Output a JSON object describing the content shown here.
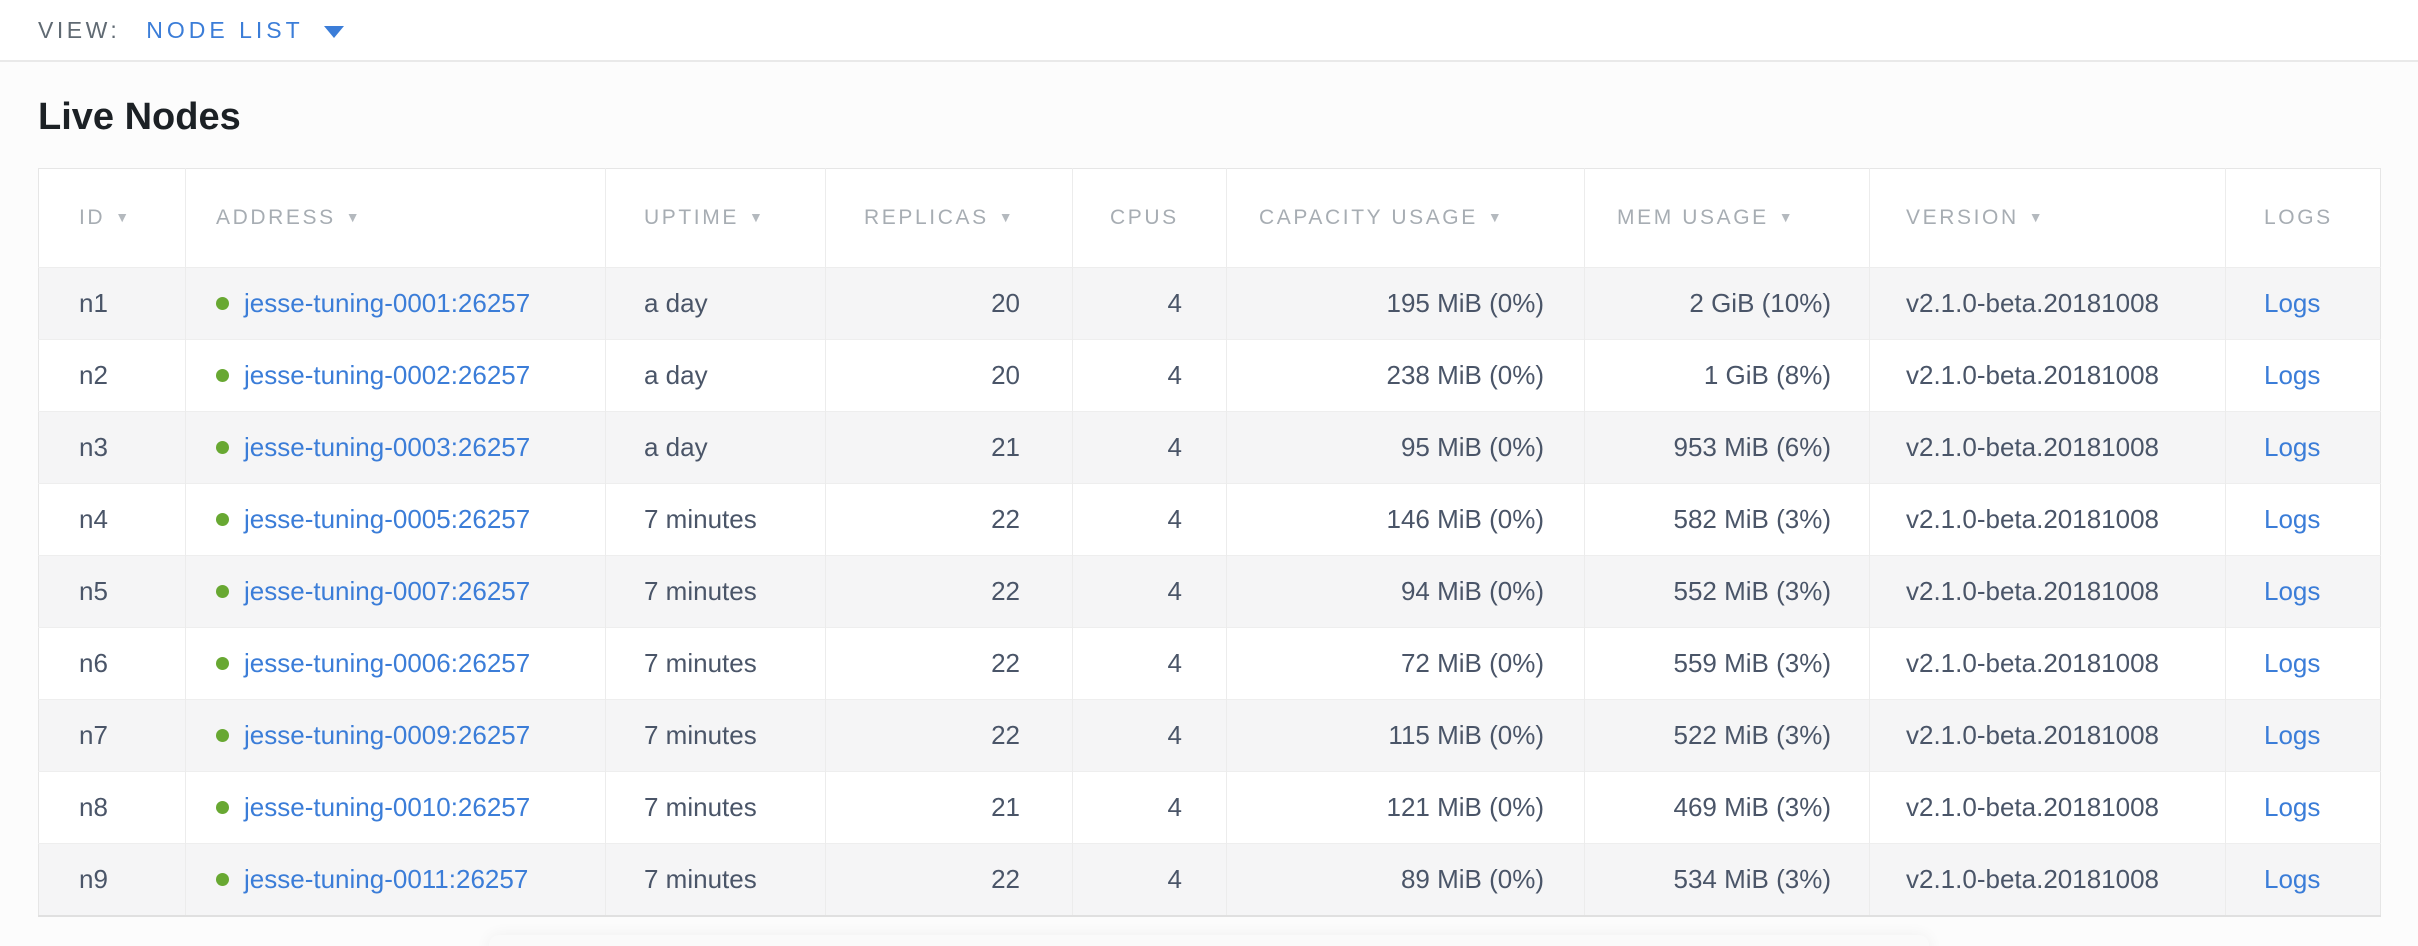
{
  "view_bar": {
    "label": "VIEW:",
    "selected": "NODE LIST"
  },
  "page": {
    "title": "Live Nodes"
  },
  "table": {
    "sort_icon_glyph": "▼",
    "columns": [
      {
        "key": "id",
        "label": "ID",
        "sortable": true
      },
      {
        "key": "address",
        "label": "ADDRESS",
        "sortable": true
      },
      {
        "key": "uptime",
        "label": "UPTIME",
        "sortable": true
      },
      {
        "key": "replicas",
        "label": "REPLICAS",
        "sortable": true
      },
      {
        "key": "cpus",
        "label": "CPUS",
        "sortable": false
      },
      {
        "key": "capacity",
        "label": "CAPACITY USAGE",
        "sortable": true
      },
      {
        "key": "mem",
        "label": "MEM USAGE",
        "sortable": true
      },
      {
        "key": "version",
        "label": "VERSION",
        "sortable": true
      },
      {
        "key": "logs",
        "label": "LOGS",
        "sortable": false
      }
    ],
    "rows": [
      {
        "id": "n1",
        "address": "jesse-tuning-0001:26257",
        "uptime": "a day",
        "replicas": "20",
        "cpus": "4",
        "capacity": "195 MiB (0%)",
        "mem": "2 GiB (10%)",
        "version": "v2.1.0-beta.20181008",
        "logs": "Logs"
      },
      {
        "id": "n2",
        "address": "jesse-tuning-0002:26257",
        "uptime": "a day",
        "replicas": "20",
        "cpus": "4",
        "capacity": "238 MiB (0%)",
        "mem": "1 GiB (8%)",
        "version": "v2.1.0-beta.20181008",
        "logs": "Logs"
      },
      {
        "id": "n3",
        "address": "jesse-tuning-0003:26257",
        "uptime": "a day",
        "replicas": "21",
        "cpus": "4",
        "capacity": "95 MiB (0%)",
        "mem": "953 MiB (6%)",
        "version": "v2.1.0-beta.20181008",
        "logs": "Logs"
      },
      {
        "id": "n4",
        "address": "jesse-tuning-0005:26257",
        "uptime": "7 minutes",
        "replicas": "22",
        "cpus": "4",
        "capacity": "146 MiB (0%)",
        "mem": "582 MiB (3%)",
        "version": "v2.1.0-beta.20181008",
        "logs": "Logs"
      },
      {
        "id": "n5",
        "address": "jesse-tuning-0007:26257",
        "uptime": "7 minutes",
        "replicas": "22",
        "cpus": "4",
        "capacity": "94 MiB (0%)",
        "mem": "552 MiB (3%)",
        "version": "v2.1.0-beta.20181008",
        "logs": "Logs"
      },
      {
        "id": "n6",
        "address": "jesse-tuning-0006:26257",
        "uptime": "7 minutes",
        "replicas": "22",
        "cpus": "4",
        "capacity": "72 MiB (0%)",
        "mem": "559 MiB (3%)",
        "version": "v2.1.0-beta.20181008",
        "logs": "Logs"
      },
      {
        "id": "n7",
        "address": "jesse-tuning-0009:26257",
        "uptime": "7 minutes",
        "replicas": "22",
        "cpus": "4",
        "capacity": "115 MiB (0%)",
        "mem": "522 MiB (3%)",
        "version": "v2.1.0-beta.20181008",
        "logs": "Logs"
      },
      {
        "id": "n8",
        "address": "jesse-tuning-0010:26257",
        "uptime": "7 minutes",
        "replicas": "21",
        "cpus": "4",
        "capacity": "121 MiB (0%)",
        "mem": "469 MiB (3%)",
        "version": "v2.1.0-beta.20181008",
        "logs": "Logs"
      },
      {
        "id": "n9",
        "address": "jesse-tuning-0011:26257",
        "uptime": "7 minutes",
        "replicas": "22",
        "cpus": "4",
        "capacity": "89 MiB (0%)",
        "mem": "534 MiB (3%)",
        "version": "v2.1.0-beta.20181008",
        "logs": "Logs"
      }
    ]
  },
  "colors": {
    "accent_blue": "#3b7dd8",
    "live_green": "#68a832",
    "header_gray": "#a7adb3",
    "cell_text": "#4a5568",
    "row_stripe": "#f5f5f6"
  }
}
